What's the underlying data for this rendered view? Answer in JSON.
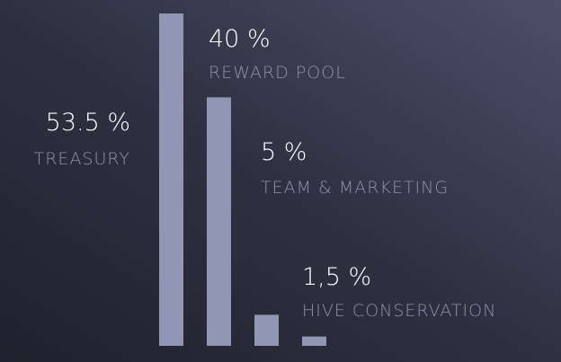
{
  "chart_data": {
    "type": "bar",
    "categories": [
      "TREASURY",
      "REWARD POOL",
      "TEAM & MARKETING",
      "HIVE CONSERVATION"
    ],
    "values": [
      53.5,
      40,
      5,
      1.5
    ],
    "value_labels": [
      "53.5 %",
      "40 %",
      "5 %",
      "1,5 %"
    ],
    "color": "#9096b3"
  }
}
